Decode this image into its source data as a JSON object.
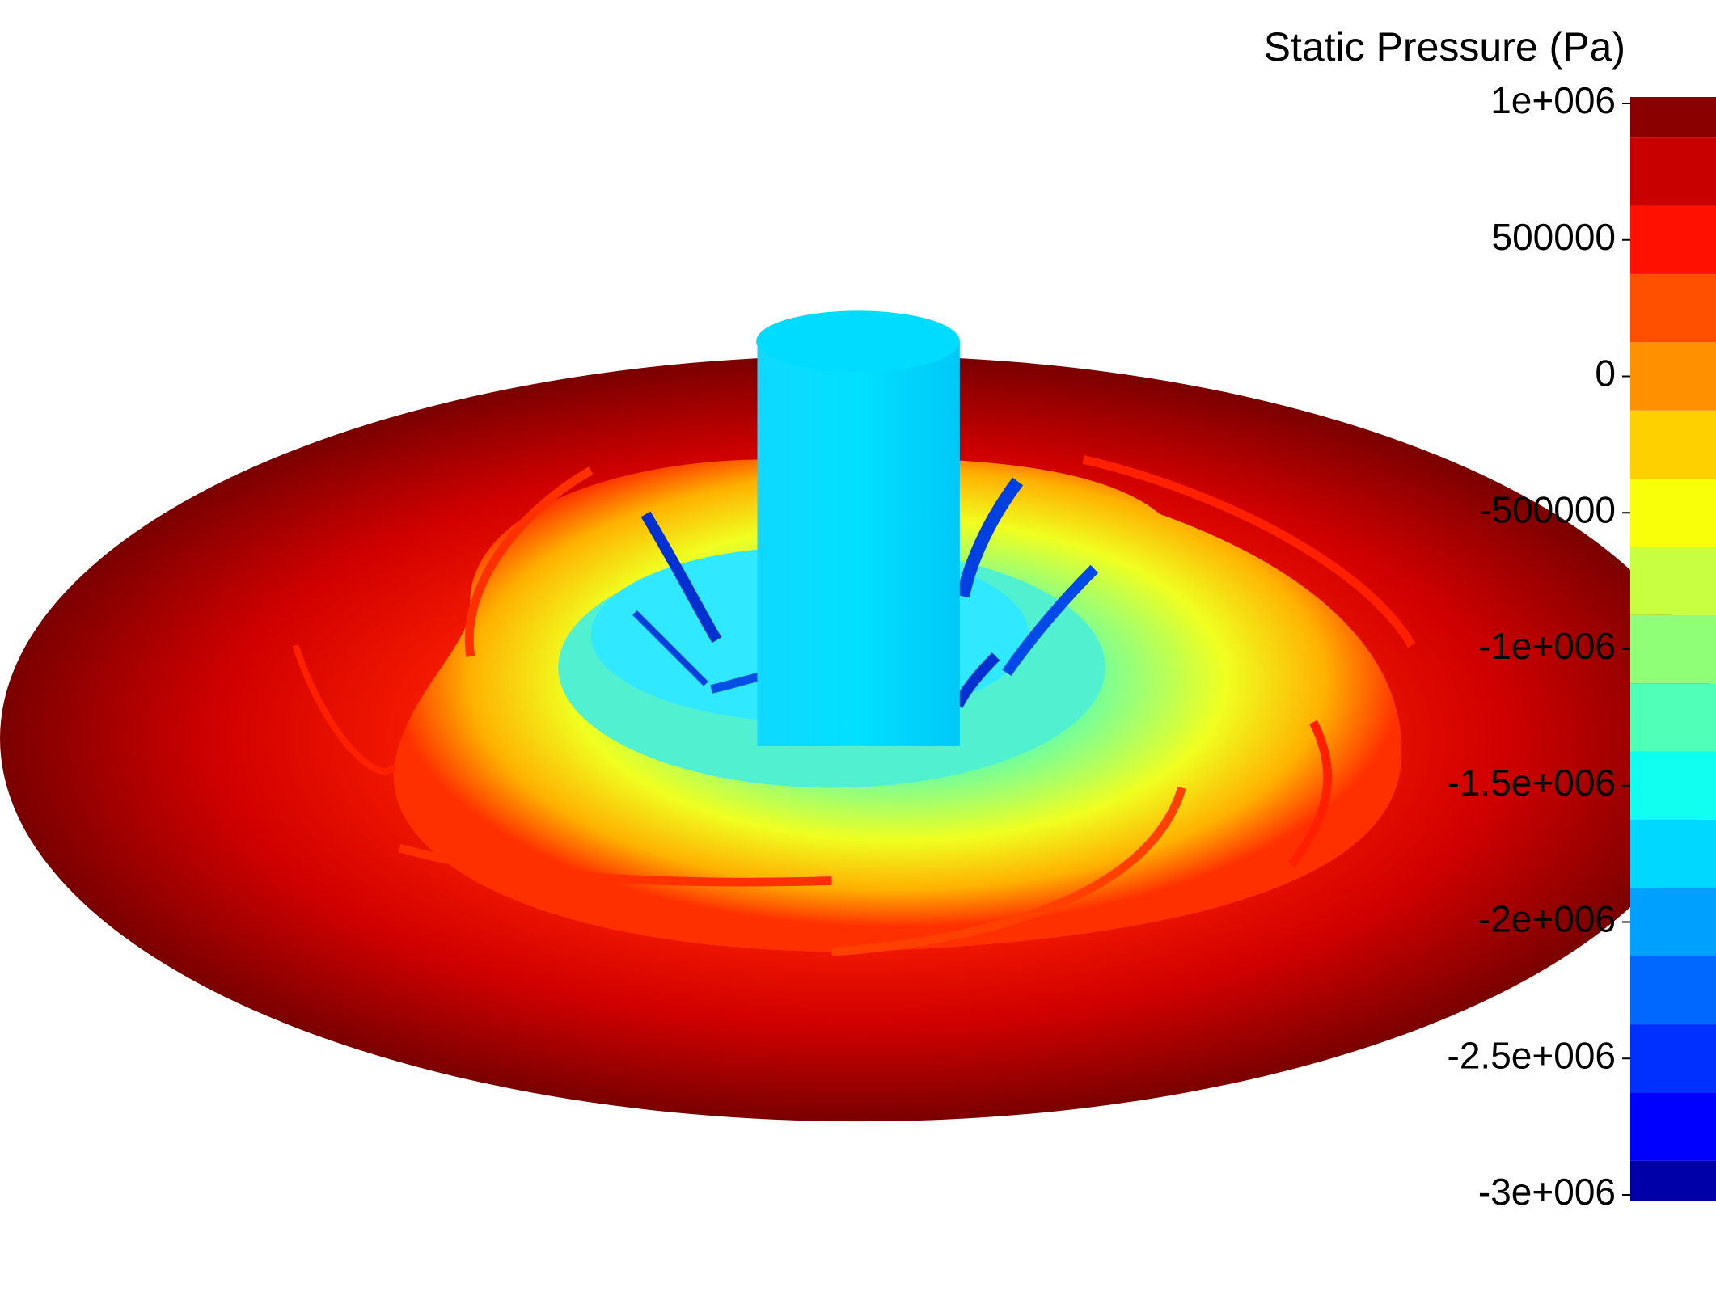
{
  "chart_data": {
    "type": "contour",
    "title": "Static Pressure (Pa)",
    "ylim": [
      -3000000,
      1000000
    ],
    "yticks": [
      {
        "value": 1000000,
        "label": "1e+006"
      },
      500000,
      0,
      -500000,
      {
        "value": -1000000,
        "label": "-1e+006"
      },
      {
        "value": -1500000,
        "label": "-1.5e+006"
      },
      {
        "value": -2000000,
        "label": "-2e+006"
      },
      {
        "value": -2500000,
        "label": "-2.5e+006"
      },
      {
        "value": -3000000,
        "label": "-3e+006"
      }
    ],
    "colors": [
      "#0000a8",
      "#0000ff",
      "#0030ff",
      "#0068ff",
      "#00a0ff",
      "#00d8ff",
      "#10fff0",
      "#50ffb8",
      "#90ff78",
      "#c8ff40",
      "#f8ff08",
      "#ffd000",
      "#ff9000",
      "#ff5000",
      "#ff1000",
      "#c80000",
      "#8a0000"
    ]
  }
}
